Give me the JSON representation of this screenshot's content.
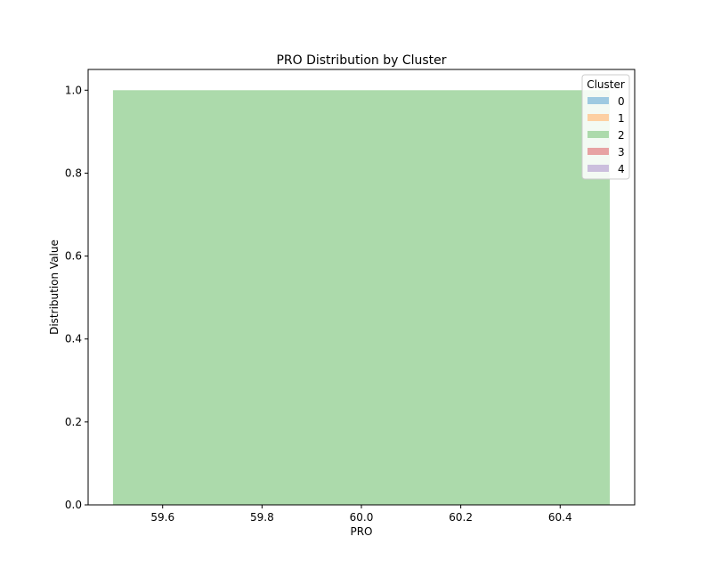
{
  "chart_data": {
    "type": "bar",
    "title": "PRO Distribution by Cluster",
    "xlabel": "PRO",
    "ylabel": "Distribution Value",
    "xlim": [
      59.45,
      60.55
    ],
    "ylim": [
      0.0,
      1.05
    ],
    "x_ticks": [
      59.6,
      59.8,
      60.0,
      60.2,
      60.4
    ],
    "x_tick_labels": [
      "59.6",
      "59.8",
      "60.0",
      "60.2",
      "60.4"
    ],
    "y_ticks": [
      0.0,
      0.2,
      0.4,
      0.6,
      0.8,
      1.0
    ],
    "y_tick_labels": [
      "0.0",
      "0.2",
      "0.4",
      "0.6",
      "0.8",
      "1.0"
    ],
    "grid": false,
    "bars": [
      {
        "series": "2",
        "x_start": 59.5,
        "x_end": 60.5,
        "value": 1.0
      }
    ],
    "legend": {
      "title": "Cluster",
      "placement": "top-right",
      "entries": [
        {
          "label": "0",
          "color": "#9ecae1"
        },
        {
          "label": "1",
          "color": "#fdd0a2"
        },
        {
          "label": "2",
          "color": "#acdaab"
        },
        {
          "label": "3",
          "color": "#e7a3a3"
        },
        {
          "label": "4",
          "color": "#cbbfdd"
        }
      ]
    }
  }
}
